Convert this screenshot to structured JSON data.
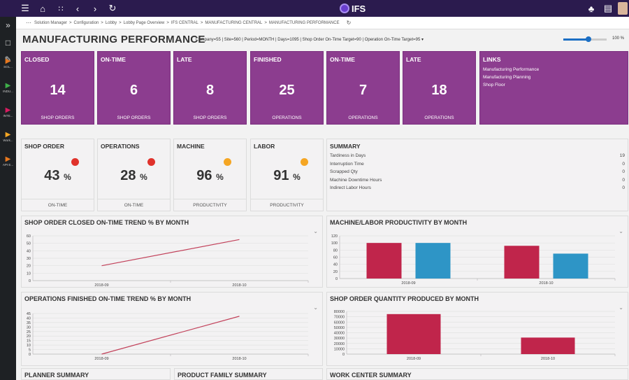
{
  "topbar": {
    "brand": "IFS"
  },
  "breadcrumb": [
    "Solution Manager",
    "Configuration",
    "Lobby",
    "Lobby Page Overview",
    "IFS CENTRAL",
    "MANUFACTURING CENTRAL",
    "MANUFACTURING PERFORMANCE"
  ],
  "breadcrumb_sep": ">",
  "sidebar": {
    "apps": [
      {
        "label": "SOL...",
        "color": "#e8781e"
      },
      {
        "label": "INDU...",
        "color": "#3fb04a"
      },
      {
        "label": "INTE...",
        "color": "#d81b60"
      },
      {
        "label": "Work...",
        "color": "#f5a623"
      },
      {
        "label": "API E...",
        "color": "#e8781e"
      }
    ]
  },
  "page": {
    "title": "MANUFACTURING PERFORMANCE",
    "params": "Company=55 | Site=560 | Period=MONTH | Days=1095 | Shop Order On-Time Target=90 | Operation On-Time Target=95 ▾",
    "zoom": {
      "label": "100 %",
      "level": 0.58
    }
  },
  "tiles": [
    {
      "title": "CLOSED",
      "value": "14",
      "unit": "SHOP ORDERS"
    },
    {
      "title": "ON-TIME",
      "value": "6",
      "unit": "SHOP ORDERS"
    },
    {
      "title": "LATE",
      "value": "8",
      "unit": "SHOP ORDERS"
    },
    {
      "title": "FINISHED",
      "value": "25",
      "unit": "OPERATIONS"
    },
    {
      "title": "ON-TIME",
      "value": "7",
      "unit": "OPERATIONS"
    },
    {
      "title": "LATE",
      "value": "18",
      "unit": "OPERATIONS"
    }
  ],
  "links": {
    "title": "LINKS",
    "items": [
      "Manufacturing Performance",
      "Manufacturing Planning",
      "Shop Floor"
    ]
  },
  "kpis": [
    {
      "title": "SHOP ORDER",
      "value": "43",
      "unit": "%",
      "label": "ON-TIME",
      "status_color": "#e0322b"
    },
    {
      "title": "OPERATIONS",
      "value": "28",
      "unit": "%",
      "label": "ON-TIME",
      "status_color": "#e0322b"
    },
    {
      "title": "MACHINE",
      "value": "96",
      "unit": "%",
      "label": "PRODUCTIVITY",
      "status_color": "#f5a623"
    },
    {
      "title": "LABOR",
      "value": "91",
      "unit": "%",
      "label": "PRODUCTIVITY",
      "status_color": "#f5a623"
    }
  ],
  "summary": {
    "title": "SUMMARY",
    "rows": [
      {
        "label": "Tardiness in Days",
        "value": "19"
      },
      {
        "label": "Interruption Time",
        "value": "0"
      },
      {
        "label": "Scrapped Qty",
        "value": "0"
      },
      {
        "label": "Machine Downtime Hours",
        "value": "0"
      },
      {
        "label": "Indirect Labor Hours",
        "value": "0"
      }
    ]
  },
  "bottom_panels": [
    "PLANNER SUMMARY",
    "PRODUCT FAMILY SUMMARY",
    "WORK CENTER SUMMARY"
  ],
  "chart_data": [
    {
      "type": "line",
      "title": "SHOP ORDER CLOSED ON-TIME TREND % BY MONTH",
      "x": [
        "2018-09",
        "2018-10"
      ],
      "series": [
        {
          "values": [
            20,
            55
          ],
          "color": "#c2415a"
        }
      ],
      "ylim": [
        0,
        60
      ],
      "yticks": [
        0,
        10,
        20,
        30,
        40,
        50,
        60
      ]
    },
    {
      "type": "bar",
      "title": "MACHINE/LABOR PRODUCTIVITY BY MONTH",
      "categories": [
        "2018-09",
        "2018-10"
      ],
      "series": [
        {
          "values": [
            100,
            92
          ],
          "color": "#c0254b"
        },
        {
          "values": [
            100,
            70
          ],
          "color": "#2e95c6"
        }
      ],
      "ylim": [
        0,
        120
      ],
      "yticks": [
        0,
        20,
        40,
        60,
        80,
        100,
        120
      ]
    },
    {
      "type": "line",
      "title": "OPERATIONS FINISHED ON-TIME TREND % BY MONTH",
      "x": [
        "2018-09",
        "2018-10"
      ],
      "series": [
        {
          "values": [
            0,
            42
          ],
          "color": "#c2415a"
        }
      ],
      "ylim": [
        0,
        45
      ],
      "yticks": [
        0,
        5,
        10,
        15,
        20,
        25,
        30,
        35,
        40,
        45
      ]
    },
    {
      "type": "bar",
      "title": "SHOP ORDER QUANTITY PRODUCED BY MONTH",
      "categories": [
        "2018-09",
        "2018-10"
      ],
      "series": [
        {
          "values": [
            75000,
            31000
          ],
          "color": "#c0254b"
        }
      ],
      "ylim": [
        0,
        80000
      ],
      "yticks": [
        0,
        10000,
        20000,
        30000,
        40000,
        50000,
        60000,
        70000,
        80000
      ]
    }
  ]
}
